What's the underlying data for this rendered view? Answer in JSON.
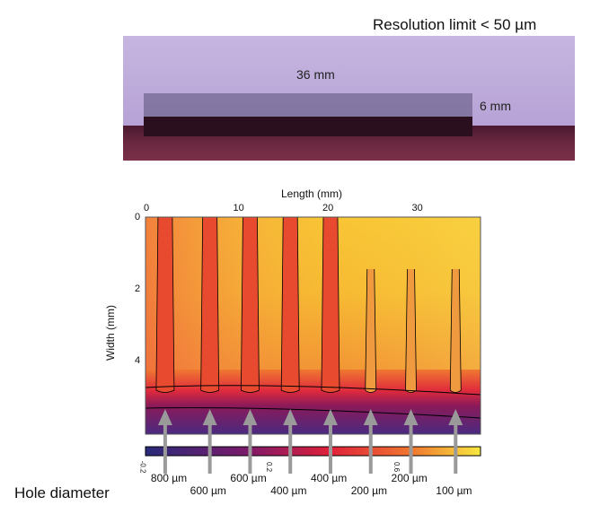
{
  "figure": {
    "resolution_note": "Resolution limit < 50 µm",
    "photo": {
      "length_label": "36 mm",
      "width_label": "6 mm"
    },
    "hole_diameter_label": "Hole diameter",
    "hole_labels": [
      "800 µm",
      "600 µm",
      "600 µm",
      "400 µm",
      "400 µm",
      "200 µm",
      "200 µm",
      "100 µm"
    ]
  },
  "chart_data": {
    "type": "heatmap",
    "xlabel": "Length (mm)",
    "ylabel": "Width (mm)",
    "xlim": [
      0,
      36
    ],
    "ylim": [
      0,
      6
    ],
    "x_ticks": [
      "0",
      "10",
      "20",
      "30"
    ],
    "y_ticks": [
      "0",
      "2",
      "4"
    ],
    "colorbar": {
      "ticks": [
        "-0.2",
        "0.2",
        "0.6"
      ],
      "range": [
        -0.2,
        0.85
      ],
      "colormap": [
        "#2a2a7a",
        "#7a1a6a",
        "#e0203a",
        "#f07030",
        "#f8e040"
      ]
    },
    "hole_positions_mm": [
      2,
      7,
      11.5,
      16,
      20.5,
      25,
      29.5,
      34.5
    ]
  }
}
